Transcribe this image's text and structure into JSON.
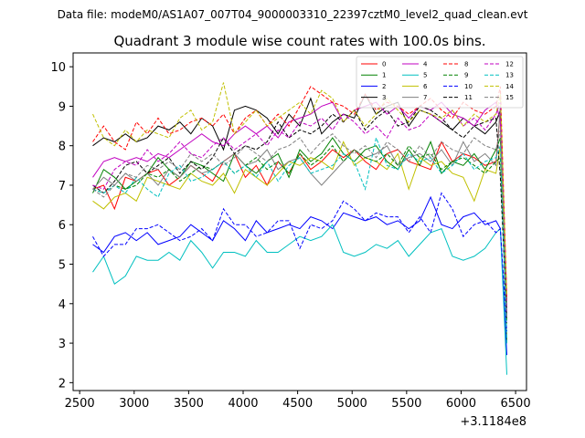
{
  "header": {
    "suptitle": "Data file: modeM0/AS1A07_007T04_9000003310_22397cztM0_level2_quad_clean.evt"
  },
  "chart_data": {
    "type": "line",
    "title": "Quadrant 3 module wise count rates with 100.0s bins.",
    "xlabel": "",
    "ylabel": "",
    "x_offset_label": "+3.1184e8",
    "xlim": [
      2440,
      6600
    ],
    "ylim": [
      1.8,
      10.35
    ],
    "xticks": [
      2500,
      3000,
      3500,
      4000,
      4500,
      5000,
      5500,
      6000,
      6500
    ],
    "xtick_labels": [
      "2500",
      "3000",
      "3500",
      "4000",
      "4500",
      "5000",
      "5500",
      "6000",
      "6500"
    ],
    "yticks": [
      2,
      3,
      4,
      5,
      6,
      7,
      8,
      9,
      10
    ],
    "ytick_labels": [
      "2",
      "3",
      "4",
      "5",
      "6",
      "7",
      "8",
      "9",
      "10"
    ],
    "grid": false,
    "legend_position": "top-right",
    "x": [
      2620,
      2720,
      2820,
      2920,
      3020,
      3120,
      3220,
      3320,
      3420,
      3520,
      3620,
      3720,
      3820,
      3920,
      4020,
      4120,
      4220,
      4320,
      4420,
      4520,
      4620,
      4720,
      4820,
      4920,
      5020,
      5120,
      5220,
      5320,
      5420,
      5520,
      5620,
      5720,
      5820,
      5920,
      6020,
      6120,
      6220,
      6320,
      6360,
      6420
    ],
    "series": [
      {
        "name": "0",
        "color": "#ff0000",
        "dash": false,
        "values": [
          6.9,
          7.0,
          6.4,
          7.2,
          7.1,
          7.3,
          7.4,
          7.0,
          7.2,
          7.5,
          7.3,
          7.1,
          7.6,
          7.8,
          7.2,
          7.5,
          7.0,
          7.6,
          7.3,
          7.8,
          7.4,
          7.6,
          7.9,
          7.7,
          7.9,
          7.6,
          7.4,
          7.8,
          7.9,
          7.6,
          7.5,
          7.4,
          8.1,
          7.6,
          7.8,
          7.7,
          7.5,
          7.6,
          8.9,
          4.1
        ]
      },
      {
        "name": "1",
        "color": "#008000",
        "dash": false,
        "values": [
          6.8,
          7.4,
          7.2,
          6.9,
          7.1,
          7.3,
          7.7,
          7.4,
          7.2,
          7.6,
          7.5,
          7.3,
          7.1,
          7.8,
          7.5,
          7.3,
          7.6,
          7.8,
          7.2,
          7.9,
          7.6,
          7.8,
          8.2,
          7.8,
          7.6,
          7.9,
          8.0,
          7.6,
          7.4,
          7.9,
          7.5,
          8.1,
          7.3,
          7.6,
          7.5,
          7.8,
          7.4,
          7.9,
          8.2,
          3.0
        ]
      },
      {
        "name": "2",
        "color": "#0000ff",
        "dash": false,
        "values": [
          5.5,
          5.3,
          5.7,
          5.8,
          5.6,
          5.8,
          5.5,
          5.6,
          5.7,
          6.0,
          5.8,
          5.6,
          6.1,
          5.9,
          5.6,
          6.1,
          5.8,
          5.9,
          6.0,
          5.9,
          6.2,
          6.1,
          5.9,
          6.3,
          6.2,
          6.1,
          6.2,
          6.0,
          6.1,
          5.9,
          6.1,
          6.7,
          6.0,
          5.9,
          6.2,
          6.3,
          6.0,
          6.1,
          5.9,
          2.7
        ]
      },
      {
        "name": "3",
        "color": "#000000",
        "dash": false,
        "values": [
          8.0,
          8.2,
          8.1,
          8.3,
          8.1,
          8.2,
          8.5,
          8.4,
          8.6,
          8.3,
          8.7,
          8.5,
          7.9,
          8.9,
          9.0,
          8.9,
          8.7,
          8.3,
          8.8,
          8.5,
          9.2,
          8.3,
          8.6,
          8.8,
          8.7,
          9.3,
          8.8,
          9.0,
          9.1,
          8.5,
          8.9,
          8.8,
          8.6,
          8.4,
          8.7,
          8.5,
          8.3,
          8.6,
          8.9,
          3.9
        ]
      },
      {
        "name": "4",
        "color": "#c000c0",
        "dash": false,
        "values": [
          7.2,
          7.6,
          7.7,
          7.6,
          7.7,
          7.6,
          7.8,
          7.7,
          7.9,
          8.1,
          8.3,
          8.1,
          8.0,
          8.3,
          8.5,
          8.3,
          8.5,
          8.2,
          8.6,
          8.7,
          8.8,
          9.0,
          9.1,
          8.6,
          8.9,
          9.0,
          9.1,
          8.8,
          9.0,
          8.7,
          9.0,
          8.9,
          9.1,
          8.8,
          8.7,
          8.5,
          8.9,
          9.1,
          8.6,
          3.7
        ]
      },
      {
        "name": "5",
        "color": "#00c0c0",
        "dash": false,
        "values": [
          4.8,
          5.2,
          4.5,
          4.7,
          5.2,
          5.1,
          5.1,
          5.3,
          5.1,
          5.6,
          5.3,
          4.9,
          5.3,
          5.3,
          5.2,
          5.6,
          5.3,
          5.3,
          5.5,
          5.7,
          5.6,
          5.7,
          6.0,
          5.3,
          5.2,
          5.3,
          5.5,
          5.4,
          5.6,
          5.2,
          5.5,
          5.8,
          5.9,
          5.2,
          5.1,
          5.2,
          5.4,
          5.8,
          5.9,
          2.2
        ]
      },
      {
        "name": "6",
        "color": "#c0c000",
        "dash": false,
        "values": [
          6.6,
          6.4,
          6.7,
          6.8,
          6.6,
          7.2,
          7.1,
          7.0,
          6.9,
          7.3,
          7.1,
          7.0,
          7.3,
          6.8,
          7.4,
          7.2,
          7.0,
          7.3,
          7.6,
          7.5,
          7.7,
          7.6,
          7.4,
          8.1,
          7.5,
          7.7,
          7.6,
          7.4,
          7.8,
          6.9,
          7.7,
          7.5,
          7.6,
          7.3,
          7.2,
          6.6,
          7.4,
          7.3,
          8.0,
          4.0
        ]
      },
      {
        "name": "7",
        "color": "#808080",
        "dash": false,
        "values": [
          6.9,
          7.2,
          7.0,
          7.3,
          7.1,
          7.3,
          7.0,
          7.4,
          7.2,
          7.5,
          7.3,
          7.4,
          7.6,
          7.8,
          7.5,
          7.6,
          7.9,
          7.4,
          7.6,
          7.7,
          7.3,
          7.0,
          7.3,
          7.6,
          7.9,
          7.7,
          7.8,
          8.0,
          7.5,
          7.7,
          7.8,
          7.6,
          7.9,
          7.5,
          8.1,
          7.6,
          7.8,
          7.5,
          9.0,
          4.0
        ]
      },
      {
        "name": "8",
        "color": "#ff0000",
        "dash": true,
        "values": [
          8.1,
          8.5,
          8.1,
          7.9,
          8.6,
          8.3,
          8.7,
          8.3,
          8.4,
          8.6,
          8.7,
          8.5,
          8.8,
          8.3,
          8.7,
          8.9,
          8.5,
          8.8,
          8.5,
          9.0,
          9.5,
          9.3,
          9.1,
          9.0,
          8.8,
          9.3,
          8.9,
          9.1,
          9.0,
          8.8,
          9.0,
          9.2,
          8.9,
          8.7,
          9.1,
          8.9,
          8.8,
          9.0,
          9.5,
          4.1
        ]
      },
      {
        "name": "9",
        "color": "#008000",
        "dash": true,
        "values": [
          6.9,
          6.8,
          7.0,
          6.9,
          7.0,
          7.3,
          7.2,
          7.4,
          7.1,
          7.3,
          7.5,
          7.4,
          7.6,
          7.3,
          7.5,
          7.7,
          7.4,
          7.6,
          7.3,
          7.8,
          7.5,
          7.7,
          8.0,
          7.6,
          7.9,
          7.7,
          7.6,
          7.8,
          7.5,
          8.0,
          7.7,
          7.8,
          7.4,
          7.6,
          7.7,
          7.5,
          7.3,
          7.6,
          7.7,
          3.5
        ]
      },
      {
        "name": "10",
        "color": "#0000ff",
        "dash": true,
        "values": [
          5.7,
          5.2,
          5.5,
          5.5,
          5.9,
          5.9,
          6.0,
          5.8,
          5.6,
          5.7,
          5.9,
          5.6,
          6.4,
          6.0,
          6.0,
          5.7,
          5.8,
          6.1,
          6.1,
          5.4,
          6.0,
          5.9,
          6.1,
          6.6,
          6.4,
          6.1,
          6.3,
          6.2,
          6.2,
          5.8,
          6.2,
          5.8,
          6.8,
          6.4,
          5.7,
          6.0,
          6.1,
          5.8,
          5.9,
          3.3
        ]
      },
      {
        "name": "11",
        "color": "#000000",
        "dash": true,
        "values": [
          7.0,
          6.8,
          7.1,
          7.5,
          7.6,
          7.3,
          7.5,
          7.7,
          7.3,
          7.6,
          7.4,
          7.7,
          8.2,
          7.8,
          8.0,
          7.9,
          8.1,
          8.6,
          8.2,
          8.4,
          8.3,
          8.5,
          8.8,
          8.6,
          8.9,
          8.4,
          8.7,
          8.9,
          8.5,
          8.6,
          9.0,
          8.9,
          8.7,
          8.4,
          8.2,
          8.5,
          8.6,
          8.7,
          7.2,
          3.6
        ]
      },
      {
        "name": "12",
        "color": "#c000c0",
        "dash": true,
        "values": [
          7.0,
          6.9,
          7.4,
          7.6,
          7.5,
          7.9,
          7.6,
          7.8,
          8.1,
          7.8,
          7.7,
          8.0,
          8.2,
          7.9,
          8.1,
          8.3,
          8.0,
          8.4,
          8.2,
          8.6,
          8.5,
          8.7,
          8.4,
          8.8,
          8.6,
          8.3,
          8.5,
          8.2,
          8.7,
          8.4,
          8.5,
          8.8,
          8.6,
          8.9,
          8.5,
          8.7,
          8.4,
          8.8,
          9.1,
          3.8
        ]
      },
      {
        "name": "13",
        "color": "#00c0c0",
        "dash": true,
        "values": [
          6.9,
          6.8,
          7.0,
          6.8,
          7.2,
          6.9,
          6.7,
          7.3,
          7.5,
          7.1,
          7.2,
          7.4,
          7.6,
          7.3,
          7.5,
          7.2,
          7.6,
          7.1,
          7.5,
          7.7,
          7.3,
          7.4,
          7.5,
          7.8,
          7.6,
          6.9,
          8.2,
          7.5,
          7.4,
          7.8,
          7.6,
          7.7,
          7.3,
          7.5,
          7.8,
          7.4,
          7.6,
          7.7,
          8.0,
          3.0
        ]
      },
      {
        "name": "14",
        "color": "#c0c000",
        "dash": true,
        "values": [
          8.8,
          8.2,
          8.0,
          8.4,
          8.1,
          8.4,
          8.3,
          8.2,
          8.7,
          8.9,
          8.4,
          8.6,
          9.6,
          8.3,
          8.6,
          8.9,
          8.5,
          8.7,
          8.9,
          9.1,
          8.8,
          9.4,
          9.2,
          8.6,
          8.9,
          8.5,
          8.8,
          9.2,
          8.9,
          8.6,
          8.9,
          8.8,
          8.7,
          8.9,
          8.5,
          8.8,
          8.6,
          8.8,
          9.3,
          4.2
        ]
      },
      {
        "name": "15",
        "color": "#808080",
        "dash": true,
        "values": [
          6.9,
          6.7,
          7.0,
          7.3,
          7.2,
          7.5,
          7.4,
          7.6,
          7.4,
          7.8,
          7.6,
          7.8,
          7.5,
          7.7,
          8.0,
          7.8,
          7.6,
          7.9,
          8.0,
          8.2,
          7.8,
          8.1,
          8.3,
          8.0,
          7.8,
          8.0,
          7.7,
          8.1,
          7.9,
          7.6,
          8.0,
          7.7,
          8.1,
          7.9,
          7.8,
          8.2,
          8.0,
          7.9,
          8.4,
          3.6
        ]
      }
    ]
  }
}
